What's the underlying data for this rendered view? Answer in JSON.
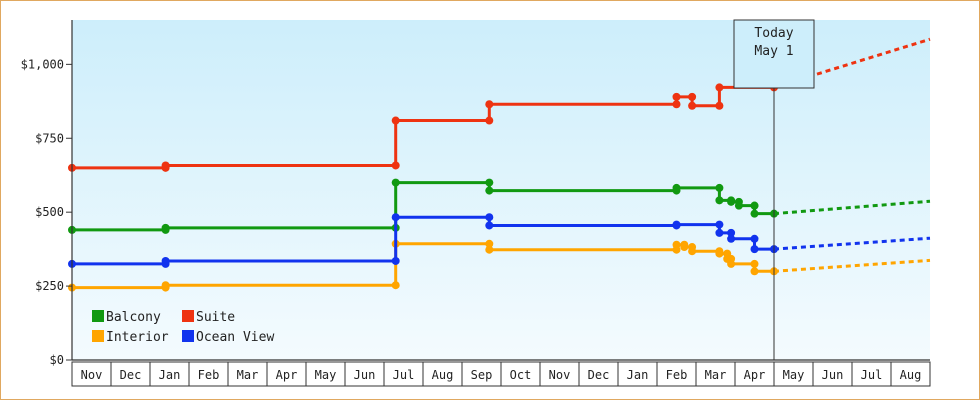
{
  "chart_data": {
    "type": "line",
    "title": "",
    "xlabel": "",
    "ylabel": "",
    "y_ticks": [
      {
        "value": 0,
        "label": "$0"
      },
      {
        "value": 250,
        "label": "$250"
      },
      {
        "value": 500,
        "label": "$500"
      },
      {
        "value": 750,
        "label": "$750"
      },
      {
        "value": 1000,
        "label": "$1,000"
      }
    ],
    "ylim": [
      0,
      1150
    ],
    "months": [
      "Nov",
      "Dec",
      "Jan",
      "Feb",
      "Mar",
      "Apr",
      "May",
      "Jun",
      "Jul",
      "Aug",
      "Sep",
      "Oct",
      "Nov",
      "Dec",
      "Jan",
      "Feb",
      "Mar",
      "Apr",
      "May",
      "Jun",
      "Jul",
      "Aug"
    ],
    "xlim_months": [
      0,
      22
    ],
    "today": {
      "line1": "Today",
      "line2": "May 1",
      "x": 18.0
    },
    "grid": true,
    "legend_position": "bottom-left",
    "legend": [
      {
        "label": "Balcony",
        "series": 0
      },
      {
        "label": "Suite",
        "series": 1
      },
      {
        "label": "Interior",
        "series": 2
      },
      {
        "label": "Ocean View",
        "series": 3
      }
    ],
    "series": [
      {
        "name": "Balcony",
        "color": "#119911",
        "points": [
          [
            0,
            440
          ],
          [
            2.4,
            440
          ],
          [
            2.4,
            447
          ],
          [
            8.3,
            447
          ],
          [
            8.3,
            600
          ],
          [
            10.7,
            600
          ],
          [
            10.7,
            573
          ],
          [
            15.5,
            573
          ],
          [
            15.5,
            582
          ],
          [
            16.6,
            582
          ],
          [
            16.6,
            540
          ],
          [
            16.9,
            540
          ],
          [
            16.9,
            535
          ],
          [
            17.1,
            535
          ],
          [
            17.1,
            522
          ],
          [
            17.5,
            522
          ],
          [
            17.5,
            522
          ],
          [
            17.5,
            495
          ],
          [
            18.0,
            495
          ]
        ],
        "forecast": [
          [
            18.0,
            495
          ],
          [
            22.0,
            537
          ]
        ]
      },
      {
        "name": "Suite",
        "color": "#ee3311",
        "points": [
          [
            0,
            650
          ],
          [
            2.4,
            650
          ],
          [
            2.4,
            658
          ],
          [
            8.3,
            658
          ],
          [
            8.3,
            810
          ],
          [
            10.7,
            810
          ],
          [
            10.7,
            865
          ],
          [
            15.5,
            865
          ],
          [
            15.5,
            890
          ],
          [
            15.9,
            890
          ],
          [
            15.9,
            860
          ],
          [
            16.6,
            860
          ],
          [
            16.6,
            922
          ],
          [
            18.0,
            922
          ]
        ],
        "forecast": [
          [
            18.0,
            922
          ],
          [
            22.0,
            1085
          ]
        ]
      },
      {
        "name": "Interior",
        "color": "#ffa500",
        "points": [
          [
            0,
            245
          ],
          [
            2.4,
            245
          ],
          [
            2.4,
            253
          ],
          [
            8.3,
            253
          ],
          [
            8.3,
            393
          ],
          [
            10.7,
            393
          ],
          [
            10.7,
            373
          ],
          [
            15.5,
            373
          ],
          [
            15.5,
            390
          ],
          [
            15.7,
            390
          ],
          [
            15.7,
            382
          ],
          [
            15.9,
            382
          ],
          [
            15.9,
            368
          ],
          [
            16.6,
            368
          ],
          [
            16.6,
            360
          ],
          [
            16.8,
            360
          ],
          [
            16.8,
            342
          ],
          [
            16.9,
            342
          ],
          [
            16.9,
            325
          ],
          [
            17.5,
            325
          ],
          [
            17.5,
            300
          ],
          [
            18.0,
            300
          ]
        ],
        "forecast": [
          [
            18.0,
            300
          ],
          [
            22.0,
            337
          ]
        ]
      },
      {
        "name": "Ocean View",
        "color": "#1133ee",
        "points": [
          [
            0,
            325
          ],
          [
            2.4,
            325
          ],
          [
            2.4,
            335
          ],
          [
            8.3,
            335
          ],
          [
            8.3,
            483
          ],
          [
            10.7,
            483
          ],
          [
            10.7,
            455
          ],
          [
            15.5,
            455
          ],
          [
            15.5,
            458
          ],
          [
            16.6,
            458
          ],
          [
            16.6,
            430
          ],
          [
            16.9,
            430
          ],
          [
            16.9,
            410
          ],
          [
            17.5,
            410
          ],
          [
            17.5,
            375
          ],
          [
            18.0,
            375
          ]
        ],
        "forecast": [
          [
            18.0,
            375
          ],
          [
            22.0,
            412
          ]
        ]
      }
    ]
  }
}
